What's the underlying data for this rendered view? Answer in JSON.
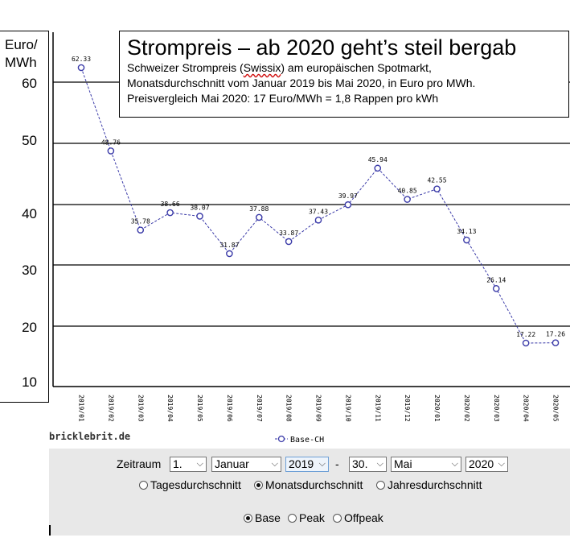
{
  "chart_data": {
    "type": "line",
    "title": "Strompreis – ab 2020 geht’s steil bergab",
    "subtitle_lines": [
      "Schweizer Strompreis (",
      "Swissix",
      ") am europäischen Spotmarkt,",
      "Monatsdurchschnitt vom Januar 2019 bis Mai 2020, in Euro pro MWh.",
      "Preisvergleich Mai 2020: 17 Euro/MWh = 1,8 Rappen pro kWh"
    ],
    "ylabel_line1": "Euro/",
    "ylabel_line2": "MWh",
    "ytick_labels": [
      "60",
      "50",
      "40",
      "30",
      "20",
      "10"
    ],
    "categories": [
      "2019/01",
      "2019/02",
      "2019/03",
      "2019/04",
      "2019/05",
      "2019/06",
      "2019/07",
      "2019/08",
      "2019/09",
      "2019/10",
      "2019/11",
      "2019/12",
      "2020/01",
      "2020/02",
      "2020/03",
      "2020/04",
      "2020/05"
    ],
    "series": [
      {
        "name": "Base-CH",
        "values": [
          62.33,
          48.76,
          35.78,
          38.66,
          38.07,
          31.87,
          37.88,
          33.87,
          37.43,
          39.97,
          45.94,
          40.85,
          42.55,
          34.13,
          26.14,
          17.22,
          17.26
        ],
        "labels": [
          "62.33",
          "48.76",
          "35.78",
          "38.66",
          "38.07",
          "31.87",
          "37.88",
          "33.87",
          "37.43",
          "39.97",
          "45.94",
          "40.85",
          "42.55",
          "34.13",
          "26.14",
          "17.22",
          "17.26"
        ],
        "color": "#3a3aa8"
      }
    ],
    "legend_position": "bottom",
    "grid": true
  },
  "credit": "bricklebrit.de",
  "form": {
    "zeitraum_label": "Zeitraum",
    "from_day": "1.",
    "from_month": "Januar",
    "from_year": "2019",
    "dash": "-",
    "to_day": "30.",
    "to_month": "Mai",
    "to_year": "2020",
    "aggregation": [
      {
        "label": "Tagesdurchschnitt",
        "checked": false
      },
      {
        "label": "Monatsdurchschnitt",
        "checked": true
      },
      {
        "label": "Jahresdurchschnitt",
        "checked": false
      }
    ],
    "product": [
      {
        "label": "Base",
        "checked": true
      },
      {
        "label": "Peak",
        "checked": false
      },
      {
        "label": "Offpeak",
        "checked": false
      }
    ]
  },
  "colors": {
    "series": "#3a3aa8",
    "panel_background": "#e8e8e8",
    "gridline": "#000000"
  }
}
